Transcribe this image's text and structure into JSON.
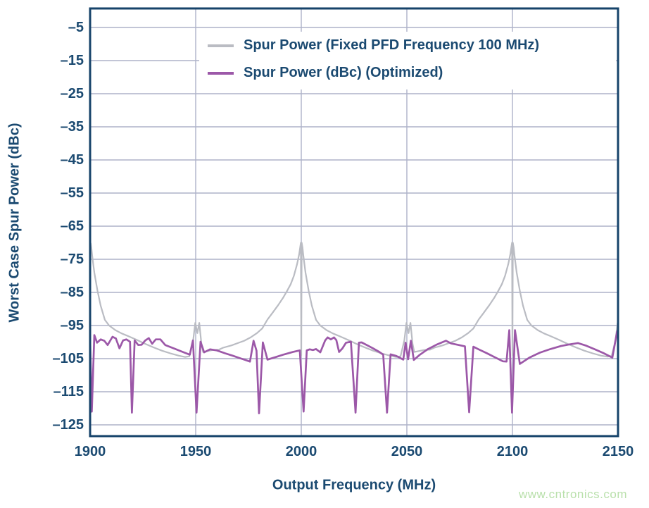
{
  "style": {
    "background": "#ffffff",
    "text_color": "#1b4a71",
    "frame_color": "#16436a",
    "grid_color": "#aeb2c9",
    "watermark_color": "#b9e0ab"
  },
  "watermark": {
    "text": "www.cntronics.com"
  },
  "axes": {
    "y_title": "Worst Case Spur Power (dBc)",
    "x_title": "Output Frequency (MHz)",
    "y_tick_labels": [
      "–5",
      "–15",
      "–25",
      "–35",
      "–45",
      "–55",
      "–65",
      "–75",
      "–85",
      "–95",
      "–105",
      "–115",
      "–125"
    ],
    "x_tick_labels": [
      "1900",
      "1950",
      "2000",
      "2050",
      "2100",
      "2150"
    ]
  },
  "chart_data": {
    "type": "line",
    "title": "",
    "xlabel": "Output Frequency (MHz)",
    "ylabel": "Worst Case Spur Power (dBc)",
    "xlim": [
      1900,
      2150
    ],
    "ylim": [
      -128.4,
      0.7
    ],
    "x_ticks": [
      1900,
      1950,
      2000,
      2050,
      2100,
      2150
    ],
    "y_ticks": [
      -5,
      -15,
      -25,
      -35,
      -45,
      -55,
      -65,
      -75,
      -85,
      -95,
      -105,
      -115,
      -125
    ],
    "grid": true,
    "legend_position": "top",
    "series": [
      {
        "name": "Spur Power (Fixed PFD Frequency 100 MHz)",
        "color": "#babcc3",
        "width": 2.2,
        "points": [
          [
            1900,
            -70
          ],
          [
            1900.3,
            -70.2
          ],
          [
            1900.6,
            -71.5
          ],
          [
            1901,
            -74
          ],
          [
            1902,
            -79
          ],
          [
            1903.5,
            -84.5
          ],
          [
            1905,
            -89
          ],
          [
            1907,
            -93.3
          ],
          [
            1909,
            -95
          ],
          [
            1912,
            -96.4
          ],
          [
            1915,
            -97.4
          ],
          [
            1918,
            -98.2
          ],
          [
            1922,
            -99.3
          ],
          [
            1926,
            -100.5
          ],
          [
            1930,
            -101.6
          ],
          [
            1934,
            -102.6
          ],
          [
            1938,
            -103.4
          ],
          [
            1942,
            -104.1
          ],
          [
            1945,
            -104.5
          ],
          [
            1947,
            -104.3
          ],
          [
            1948.8,
            -99.5
          ],
          [
            1949.8,
            -94.2
          ],
          [
            1950.8,
            -97.3
          ],
          [
            1951.7,
            -94.2
          ],
          [
            1952.7,
            -100.5
          ],
          [
            1953.5,
            -103
          ],
          [
            1955,
            -102.8
          ],
          [
            1958,
            -102.4
          ],
          [
            1961,
            -102.3
          ],
          [
            1963,
            -101.7
          ],
          [
            1967,
            -101
          ],
          [
            1970,
            -100.3
          ],
          [
            1973,
            -99.6
          ],
          [
            1976,
            -98.6
          ],
          [
            1979,
            -97.3
          ],
          [
            1981.5,
            -95.9
          ],
          [
            1984,
            -93.2
          ],
          [
            1986,
            -91.5
          ],
          [
            1989,
            -88.9
          ],
          [
            1991.5,
            -86.5
          ],
          [
            1993.5,
            -84.3
          ],
          [
            1995,
            -82.5
          ],
          [
            1996.5,
            -80
          ],
          [
            1998,
            -76.5
          ],
          [
            1999,
            -73.5
          ],
          [
            1999.5,
            -71.3
          ],
          [
            1999.8,
            -70
          ],
          [
            2000,
            -104
          ],
          [
            2000.2,
            -70
          ],
          [
            2000.6,
            -71.5
          ],
          [
            2001,
            -74
          ],
          [
            2002,
            -79
          ],
          [
            2003.5,
            -84.5
          ],
          [
            2005,
            -89
          ],
          [
            2007,
            -93.3
          ],
          [
            2009,
            -95
          ],
          [
            2012,
            -96.4
          ],
          [
            2015,
            -97.4
          ],
          [
            2018,
            -98.2
          ],
          [
            2022,
            -99.3
          ],
          [
            2026,
            -100.5
          ],
          [
            2030,
            -101.6
          ],
          [
            2034,
            -102.6
          ],
          [
            2038,
            -103.4
          ],
          [
            2042,
            -104.1
          ],
          [
            2045,
            -104.5
          ],
          [
            2047,
            -104.3
          ],
          [
            2048.8,
            -99.5
          ],
          [
            2049.8,
            -94.2
          ],
          [
            2050.8,
            -97.3
          ],
          [
            2051.7,
            -94.2
          ],
          [
            2052.7,
            -100.5
          ],
          [
            2053.5,
            -103
          ],
          [
            2055,
            -102.8
          ],
          [
            2058,
            -102.4
          ],
          [
            2061,
            -102.3
          ],
          [
            2063,
            -101.7
          ],
          [
            2067,
            -101
          ],
          [
            2070,
            -100.3
          ],
          [
            2073,
            -99.6
          ],
          [
            2076,
            -98.6
          ],
          [
            2079,
            -97.3
          ],
          [
            2081.5,
            -95.9
          ],
          [
            2084,
            -93.2
          ],
          [
            2086,
            -91.5
          ],
          [
            2089,
            -88.9
          ],
          [
            2091.5,
            -86.5
          ],
          [
            2093.5,
            -84.3
          ],
          [
            2095,
            -82.5
          ],
          [
            2096.5,
            -80
          ],
          [
            2098,
            -76.5
          ],
          [
            2099,
            -73.5
          ],
          [
            2099.5,
            -71.3
          ],
          [
            2099.8,
            -70
          ],
          [
            2100,
            -104
          ],
          [
            2100.2,
            -70
          ],
          [
            2100.6,
            -71.5
          ],
          [
            2101,
            -74
          ],
          [
            2102,
            -79
          ],
          [
            2103.5,
            -84.5
          ],
          [
            2105,
            -89
          ],
          [
            2107,
            -93.3
          ],
          [
            2109,
            -95
          ],
          [
            2112,
            -96.4
          ],
          [
            2115,
            -97.4
          ],
          [
            2118,
            -98.2
          ],
          [
            2122,
            -99.3
          ],
          [
            2126,
            -100.5
          ],
          [
            2130,
            -101.6
          ],
          [
            2134,
            -102.6
          ],
          [
            2138,
            -103.4
          ],
          [
            2142,
            -104.1
          ],
          [
            2145,
            -104.4
          ],
          [
            2147,
            -104.2
          ],
          [
            2148.8,
            -99.5
          ],
          [
            2149.8,
            -94.2
          ],
          [
            2150,
            -94.8
          ]
        ]
      },
      {
        "name": "Spur Power (dBc) (Optimized)",
        "color": "#9c58a8",
        "width": 2.7,
        "points": [
          [
            1900,
            -99
          ],
          [
            1900.8,
            -121
          ],
          [
            1902,
            -97.9
          ],
          [
            1903.3,
            -100.2
          ],
          [
            1905,
            -99.2
          ],
          [
            1906.7,
            -99.6
          ],
          [
            1908.3,
            -100.9
          ],
          [
            1910.6,
            -98.4
          ],
          [
            1912.2,
            -98.9
          ],
          [
            1913.9,
            -101.9
          ],
          [
            1915.6,
            -99.5
          ],
          [
            1917.2,
            -99.2
          ],
          [
            1918.9,
            -99.9
          ],
          [
            1919.8,
            -121.3
          ],
          [
            1921.1,
            -99.5
          ],
          [
            1922.8,
            -100.9
          ],
          [
            1924.4,
            -100.8
          ],
          [
            1926.1,
            -99.5
          ],
          [
            1927.8,
            -98.8
          ],
          [
            1929.4,
            -100.5
          ],
          [
            1931.1,
            -99.2
          ],
          [
            1933.3,
            -99.2
          ],
          [
            1935.6,
            -100.9
          ],
          [
            1940,
            -102
          ],
          [
            1944.4,
            -103.1
          ],
          [
            1947.2,
            -103.8
          ],
          [
            1948.7,
            -99.5
          ],
          [
            1950.4,
            -121.3
          ],
          [
            1952.3,
            -99.9
          ],
          [
            1954,
            -103.1
          ],
          [
            1956.8,
            -102.2
          ],
          [
            1960,
            -102.5
          ],
          [
            1964,
            -103.4
          ],
          [
            1967.5,
            -104.1
          ],
          [
            1970.7,
            -104.8
          ],
          [
            1973.5,
            -105.4
          ],
          [
            1975.7,
            -105.9
          ],
          [
            1977.4,
            -99.6
          ],
          [
            1978.8,
            -102.6
          ],
          [
            1980,
            -121.5
          ],
          [
            1981.8,
            -100.1
          ],
          [
            1984,
            -105.3
          ],
          [
            1988,
            -104.5
          ],
          [
            1992,
            -103.7
          ],
          [
            1996,
            -103
          ],
          [
            1999.3,
            -102.5
          ],
          [
            2001.1,
            -121
          ],
          [
            2002.6,
            -102.5
          ],
          [
            2004,
            -102.2
          ],
          [
            2005.5,
            -102.4
          ],
          [
            2007,
            -102.1
          ],
          [
            2009,
            -103.1
          ],
          [
            2011.3,
            -99.5
          ],
          [
            2012.5,
            -98.6
          ],
          [
            2014,
            -99.2
          ],
          [
            2015.5,
            -98.6
          ],
          [
            2016.6,
            -99.4
          ],
          [
            2017.9,
            -103
          ],
          [
            2019.5,
            -101.9
          ],
          [
            2021.2,
            -100.2
          ],
          [
            2023.5,
            -99.9
          ],
          [
            2025.7,
            -121.3
          ],
          [
            2027.3,
            -100.2
          ],
          [
            2028.6,
            -100.1
          ],
          [
            2031,
            -100.9
          ],
          [
            2034,
            -101.9
          ],
          [
            2037,
            -103
          ],
          [
            2038.8,
            -103.8
          ],
          [
            2040.6,
            -121.3
          ],
          [
            2042.3,
            -103.7
          ],
          [
            2045,
            -104.2
          ],
          [
            2048.3,
            -105.3
          ],
          [
            2049.4,
            -100.2
          ],
          [
            2050.6,
            -105.2
          ],
          [
            2051.9,
            -99.6
          ],
          [
            2053.3,
            -105.4
          ],
          [
            2056,
            -103.9
          ],
          [
            2060,
            -102.1
          ],
          [
            2064,
            -100.8
          ],
          [
            2068.5,
            -99.6
          ],
          [
            2071,
            -100.4
          ],
          [
            2074,
            -100.8
          ],
          [
            2077.5,
            -101.3
          ],
          [
            2079.5,
            -121.2
          ],
          [
            2081.5,
            -101.4
          ],
          [
            2084,
            -102.2
          ],
          [
            2088,
            -103.4
          ],
          [
            2092,
            -104.7
          ],
          [
            2095.5,
            -105.8
          ],
          [
            2097.2,
            -105.9
          ],
          [
            2098.5,
            -96.4
          ],
          [
            2099.8,
            -121.3
          ],
          [
            2101.2,
            -96.4
          ],
          [
            2103.5,
            -106.6
          ],
          [
            2108,
            -104.7
          ],
          [
            2113,
            -103.2
          ],
          [
            2118,
            -102.1
          ],
          [
            2123,
            -101.2
          ],
          [
            2127,
            -100.7
          ],
          [
            2131,
            -100.3
          ],
          [
            2135,
            -101.1
          ],
          [
            2139,
            -102.2
          ],
          [
            2143,
            -103.3
          ],
          [
            2147.3,
            -104.7
          ],
          [
            2149.6,
            -96.7
          ],
          [
            2150,
            -96.9
          ]
        ]
      }
    ]
  }
}
